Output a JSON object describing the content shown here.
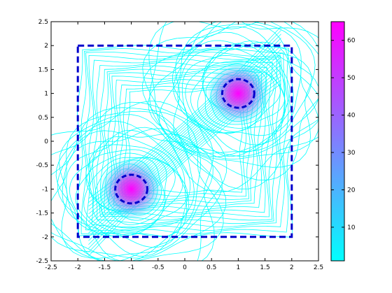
{
  "chart_data": {
    "type": "contour",
    "title": "",
    "xlabel": "",
    "ylabel": "",
    "xlim": [
      -2.5,
      2.5
    ],
    "ylim": [
      -2.5,
      2.5
    ],
    "x_ticks": [
      -2.5,
      -2,
      -1.5,
      -1,
      -0.5,
      0,
      0.5,
      1,
      1.5,
      2,
      2.5
    ],
    "y_ticks": [
      -2.5,
      -2,
      -1.5,
      -1,
      -0.5,
      0,
      0.5,
      1,
      1.5,
      2,
      2.5
    ],
    "x_tick_labels": [
      "-2.5",
      "-2",
      "-1.5",
      "-1",
      "-0.5",
      "0",
      "0.5",
      "1",
      "1.5",
      "2",
      "2.5"
    ],
    "y_tick_labels": [
      "-2.5",
      "-2",
      "-1.5",
      "-1",
      "-0.5",
      "0",
      "0.5",
      "1",
      "1.5",
      "2",
      "2.5"
    ],
    "peaks": [
      {
        "x": -1.0,
        "y": -1.0,
        "value": 65
      },
      {
        "x": 1.0,
        "y": 1.0,
        "value": 65
      }
    ],
    "dashed_square": {
      "x": [
        -2,
        2
      ],
      "y": [
        -2,
        2
      ],
      "color": "#0000cc"
    },
    "dashed_circles": [
      {
        "cx": -1.0,
        "cy": -1.0,
        "r": 0.3,
        "color": "#0000cc"
      },
      {
        "cx": 1.0,
        "cy": 1.0,
        "r": 0.3,
        "color": "#0000cc"
      }
    ],
    "colorbar": {
      "range": [
        1,
        65
      ],
      "ticks": [
        10,
        20,
        30,
        40,
        50,
        60
      ],
      "tick_labels": [
        "10",
        "20",
        "30",
        "40",
        "50",
        "60"
      ],
      "colormap": "cool",
      "color_low": "#00ffff",
      "color_high": "#ff00ff"
    },
    "grid": false,
    "legend": "none"
  }
}
